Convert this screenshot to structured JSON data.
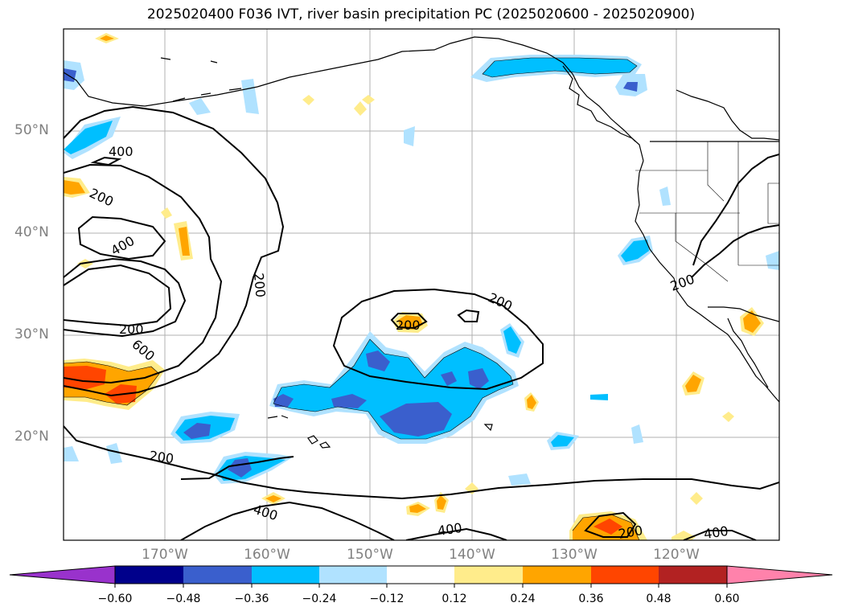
{
  "title": "2025020400 F036 IVT, river basin precipitation PC (2025020600 - 2025020900)",
  "map": {
    "lat_labels": [
      "50°N",
      "40°N",
      "30°N",
      "20°N"
    ],
    "lon_labels": [
      "170°W",
      "160°W",
      "150°W",
      "140°W",
      "130°W",
      "120°W"
    ],
    "contour_labels": [
      "400",
      "200",
      "400",
      "200",
      "200",
      "600",
      "200",
      "200",
      "200",
      "200",
      "400",
      "400",
      "400",
      "200"
    ],
    "gridlines": true,
    "coastline_color": "#000000"
  },
  "colorbar": {
    "ticks": [
      "−0.60",
      "−0.48",
      "−0.36",
      "−0.24",
      "−0.12",
      "0.12",
      "0.24",
      "0.36",
      "0.48",
      "0.60"
    ],
    "colors": [
      "#9932cc",
      "#00008b",
      "#3a5fcd",
      "#00bfff",
      "#b0e2ff",
      "#ffffff",
      "#ffec8b",
      "#ffa500",
      "#ff4500",
      "#b22222",
      "#ff82ab"
    ]
  }
}
